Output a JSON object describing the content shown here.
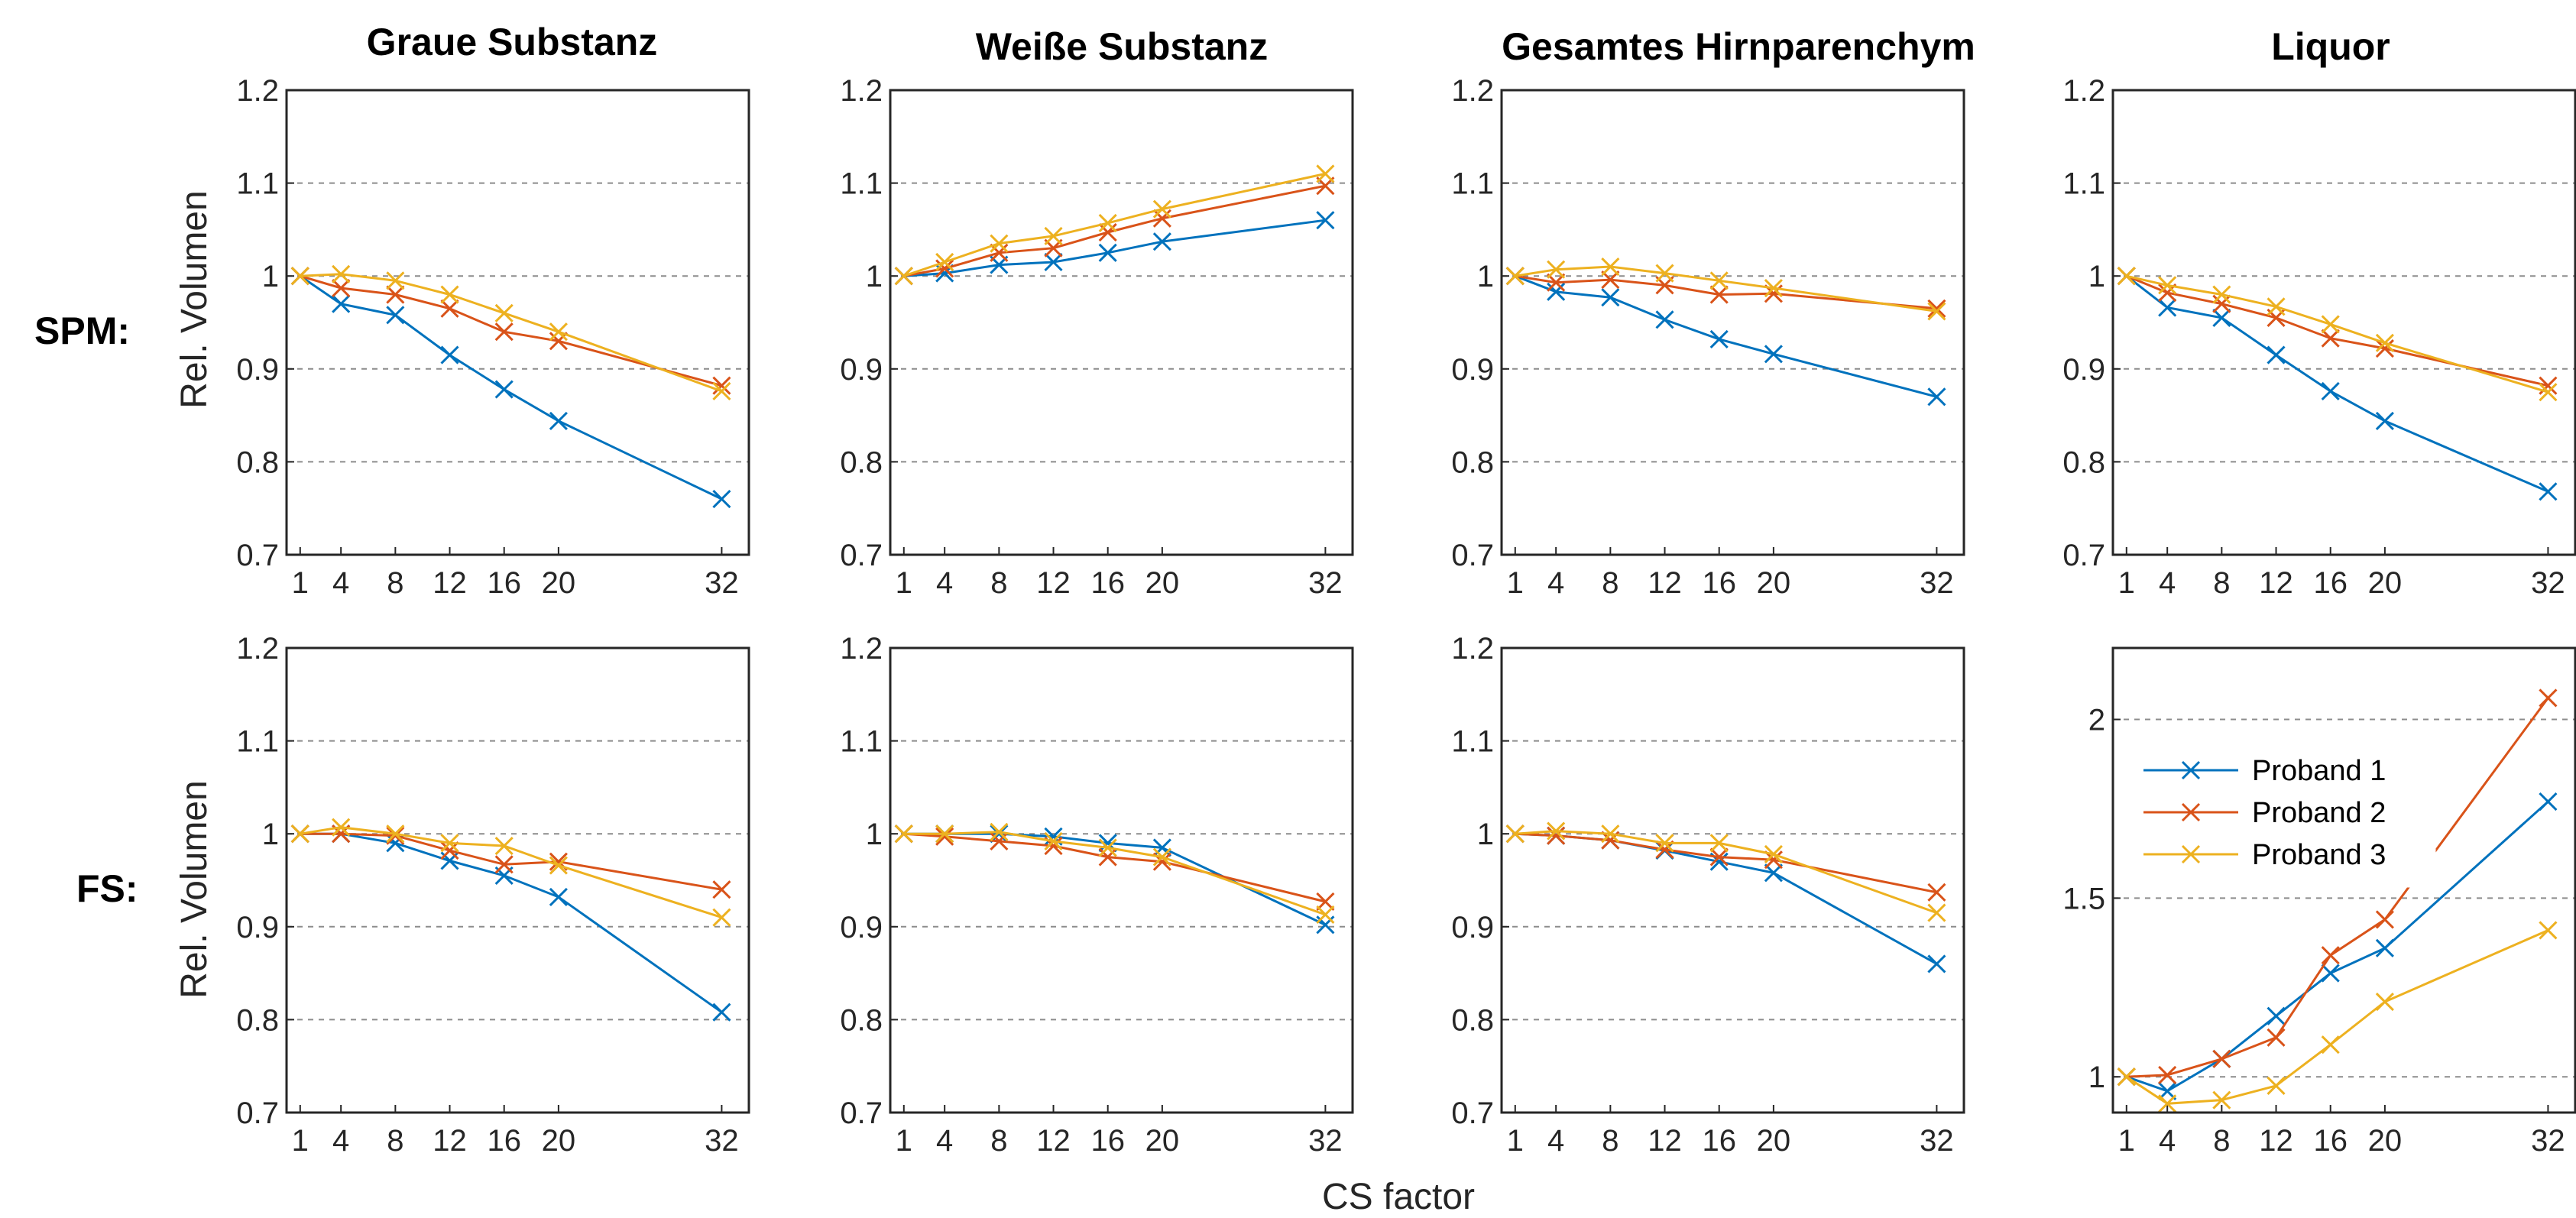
{
  "figure": {
    "xlabel": "CS factor",
    "row_labels": [
      "SPM:",
      "FS:"
    ],
    "panel_ylabel": "Rel. Volumen",
    "column_titles": [
      "Graue Substanz",
      "Weiße Substanz",
      "Gesamtes Hirnparenchym",
      "Liquor"
    ]
  },
  "colors": {
    "Proband 1": "#0072BD",
    "Proband 2": "#D95319",
    "Proband 3": "#EDB120",
    "grid": "#8c8c8c",
    "axes": "#262626"
  },
  "legend": {
    "location": "upper-left of FS Liquor panel",
    "entries": [
      "Proband 1",
      "Proband 2",
      "Proband 3"
    ]
  },
  "chart_data": [
    {
      "type": "line",
      "row": "SPM:",
      "title": "Graue Substanz",
      "xlabel": "",
      "ylabel": "Rel. Volumen",
      "x": [
        1,
        4,
        8,
        12,
        16,
        20,
        32
      ],
      "xticks": [
        1,
        4,
        8,
        12,
        16,
        20,
        32
      ],
      "xlim": [
        0,
        34
      ],
      "ylim": [
        0.7,
        1.2
      ],
      "yticks": [
        0.7,
        0.8,
        0.9,
        1,
        1.1,
        1.2
      ],
      "ytick_labels": [
        "0.7",
        "0.8",
        "0.9",
        "1",
        "1.1",
        "1.2"
      ],
      "grid": "y dashed",
      "marker": "x",
      "series": [
        {
          "name": "Proband 1",
          "values": [
            1.0,
            0.97,
            0.958,
            0.915,
            0.878,
            0.844,
            0.76
          ]
        },
        {
          "name": "Proband 2",
          "values": [
            1.0,
            0.987,
            0.98,
            0.965,
            0.94,
            0.93,
            0.882
          ]
        },
        {
          "name": "Proband 3",
          "values": [
            1.0,
            1.002,
            0.995,
            0.98,
            0.96,
            0.94,
            0.876
          ]
        }
      ]
    },
    {
      "type": "line",
      "row": "SPM:",
      "title": "Weiße Substanz",
      "xlabel": "",
      "ylabel": "",
      "x": [
        1,
        4,
        8,
        12,
        16,
        20,
        32
      ],
      "xticks": [
        1,
        4,
        8,
        12,
        16,
        20,
        32
      ],
      "xlim": [
        0,
        34
      ],
      "ylim": [
        0.7,
        1.2
      ],
      "yticks": [
        0.7,
        0.8,
        0.9,
        1,
        1.1,
        1.2
      ],
      "ytick_labels": [
        "0.7",
        "0.8",
        "0.9",
        "1",
        "1.1",
        "1.2"
      ],
      "grid": "y dashed",
      "marker": "x",
      "series": [
        {
          "name": "Proband 1",
          "values": [
            1.0,
            1.003,
            1.012,
            1.015,
            1.025,
            1.037,
            1.06
          ]
        },
        {
          "name": "Proband 2",
          "values": [
            1.0,
            1.008,
            1.025,
            1.03,
            1.047,
            1.062,
            1.097
          ]
        },
        {
          "name": "Proband 3",
          "values": [
            1.0,
            1.015,
            1.035,
            1.043,
            1.057,
            1.072,
            1.11
          ]
        }
      ]
    },
    {
      "type": "line",
      "row": "SPM:",
      "title": "Gesamtes Hirnparenchym",
      "xlabel": "",
      "ylabel": "",
      "x": [
        1,
        4,
        8,
        12,
        16,
        20,
        32
      ],
      "xticks": [
        1,
        4,
        8,
        12,
        16,
        20,
        32
      ],
      "xlim": [
        0,
        34
      ],
      "ylim": [
        0.7,
        1.2
      ],
      "yticks": [
        0.7,
        0.8,
        0.9,
        1,
        1.1,
        1.2
      ],
      "ytick_labels": [
        "0.7",
        "0.8",
        "0.9",
        "1",
        "1.1",
        "1.2"
      ],
      "grid": "y dashed",
      "marker": "x",
      "series": [
        {
          "name": "Proband 1",
          "values": [
            1.0,
            0.983,
            0.977,
            0.953,
            0.932,
            0.916,
            0.87
          ]
        },
        {
          "name": "Proband 2",
          "values": [
            1.0,
            0.993,
            0.996,
            0.99,
            0.98,
            0.981,
            0.965
          ]
        },
        {
          "name": "Proband 3",
          "values": [
            1.0,
            1.007,
            1.01,
            1.003,
            0.995,
            0.987,
            0.962
          ]
        }
      ]
    },
    {
      "type": "line",
      "row": "SPM:",
      "title": "Liquor",
      "xlabel": "",
      "ylabel": "",
      "x": [
        1,
        4,
        8,
        12,
        16,
        20,
        32
      ],
      "xticks": [
        1,
        4,
        8,
        12,
        16,
        20,
        32
      ],
      "xlim": [
        0,
        34
      ],
      "ylim": [
        0.7,
        1.2
      ],
      "yticks": [
        0.7,
        0.8,
        0.9,
        1,
        1.1,
        1.2
      ],
      "ytick_labels": [
        "0.7",
        "0.8",
        "0.9",
        "1",
        "1.1",
        "1.2"
      ],
      "grid": "y dashed",
      "marker": "x",
      "series": [
        {
          "name": "Proband 1",
          "values": [
            1.0,
            0.966,
            0.955,
            0.915,
            0.876,
            0.844,
            0.768
          ]
        },
        {
          "name": "Proband 2",
          "values": [
            1.0,
            0.982,
            0.97,
            0.955,
            0.933,
            0.922,
            0.882
          ]
        },
        {
          "name": "Proband 3",
          "values": [
            1.0,
            0.99,
            0.98,
            0.967,
            0.948,
            0.928,
            0.875
          ]
        }
      ]
    },
    {
      "type": "line",
      "row": "FS:",
      "title": "",
      "xlabel": "",
      "ylabel": "Rel. Volumen",
      "x": [
        1,
        4,
        8,
        12,
        16,
        20,
        32
      ],
      "xticks": [
        1,
        4,
        8,
        12,
        16,
        20,
        32
      ],
      "xlim": [
        0,
        34
      ],
      "ylim": [
        0.7,
        1.2
      ],
      "yticks": [
        0.7,
        0.8,
        0.9,
        1,
        1.1,
        1.2
      ],
      "ytick_labels": [
        "0.7",
        "0.8",
        "0.9",
        "1",
        "1.1",
        "1.2"
      ],
      "grid": "y dashed",
      "marker": "x",
      "series": [
        {
          "name": "Proband 1",
          "values": [
            1.0,
            1.0,
            0.99,
            0.971,
            0.955,
            0.932,
            0.808
          ]
        },
        {
          "name": "Proband 2",
          "values": [
            1.0,
            1.0,
            0.998,
            0.982,
            0.967,
            0.97,
            0.94
          ]
        },
        {
          "name": "Proband 3",
          "values": [
            1.0,
            1.007,
            1.0,
            0.99,
            0.987,
            0.966,
            0.91
          ]
        }
      ]
    },
    {
      "type": "line",
      "row": "FS:",
      "title": "",
      "xlabel": "",
      "ylabel": "",
      "x": [
        1,
        4,
        8,
        12,
        16,
        20,
        32
      ],
      "xticks": [
        1,
        4,
        8,
        12,
        16,
        20,
        32
      ],
      "xlim": [
        0,
        34
      ],
      "ylim": [
        0.7,
        1.2
      ],
      "yticks": [
        0.7,
        0.8,
        0.9,
        1,
        1.1,
        1.2
      ],
      "ytick_labels": [
        "0.7",
        "0.8",
        "0.9",
        "1",
        "1.1",
        "1.2"
      ],
      "grid": "y dashed",
      "marker": "x",
      "series": [
        {
          "name": "Proband 1",
          "values": [
            1.0,
            1.0,
            1.0,
            0.997,
            0.99,
            0.985,
            0.902
          ]
        },
        {
          "name": "Proband 2",
          "values": [
            1.0,
            0.997,
            0.992,
            0.987,
            0.975,
            0.97,
            0.927
          ]
        },
        {
          "name": "Proband 3",
          "values": [
            1.0,
            1.0,
            1.002,
            0.992,
            0.985,
            0.975,
            0.913
          ]
        }
      ]
    },
    {
      "type": "line",
      "row": "FS:",
      "title": "",
      "xlabel": "",
      "ylabel": "",
      "x": [
        1,
        4,
        8,
        12,
        16,
        20,
        32
      ],
      "xticks": [
        1,
        4,
        8,
        12,
        16,
        20,
        32
      ],
      "xlim": [
        0,
        34
      ],
      "ylim": [
        0.7,
        1.2
      ],
      "yticks": [
        0.7,
        0.8,
        0.9,
        1,
        1.1,
        1.2
      ],
      "ytick_labels": [
        "0.7",
        "0.8",
        "0.9",
        "1",
        "1.1",
        "1.2"
      ],
      "grid": "y dashed",
      "marker": "x",
      "series": [
        {
          "name": "Proband 1",
          "values": [
            1.0,
            0.998,
            0.993,
            0.982,
            0.97,
            0.958,
            0.86
          ]
        },
        {
          "name": "Proband 2",
          "values": [
            1.0,
            0.998,
            0.993,
            0.983,
            0.975,
            0.972,
            0.937
          ]
        },
        {
          "name": "Proband 3",
          "values": [
            1.0,
            1.003,
            1.0,
            0.99,
            0.99,
            0.978,
            0.915
          ]
        }
      ]
    },
    {
      "type": "line",
      "row": "FS:",
      "title": "",
      "xlabel": "",
      "ylabel": "",
      "x": [
        1,
        4,
        8,
        12,
        16,
        20,
        32
      ],
      "xticks": [
        1,
        4,
        8,
        12,
        16,
        20,
        32
      ],
      "xlim": [
        0,
        34
      ],
      "ylim": [
        0.9,
        2.2
      ],
      "yticks": [
        1,
        1.5,
        2
      ],
      "ytick_labels": [
        "1",
        "1.5",
        "2"
      ],
      "grid": "y dashed",
      "marker": "x",
      "legend": "upper-left",
      "series": [
        {
          "name": "Proband 1",
          "values": [
            1.0,
            0.96,
            1.05,
            1.17,
            1.29,
            1.36,
            1.77
          ]
        },
        {
          "name": "Proband 2",
          "values": [
            1.0,
            1.005,
            1.05,
            1.11,
            1.34,
            1.44,
            2.06
          ]
        },
        {
          "name": "Proband 3",
          "values": [
            1.0,
            0.925,
            0.935,
            0.975,
            1.09,
            1.21,
            1.41
          ]
        }
      ]
    }
  ]
}
